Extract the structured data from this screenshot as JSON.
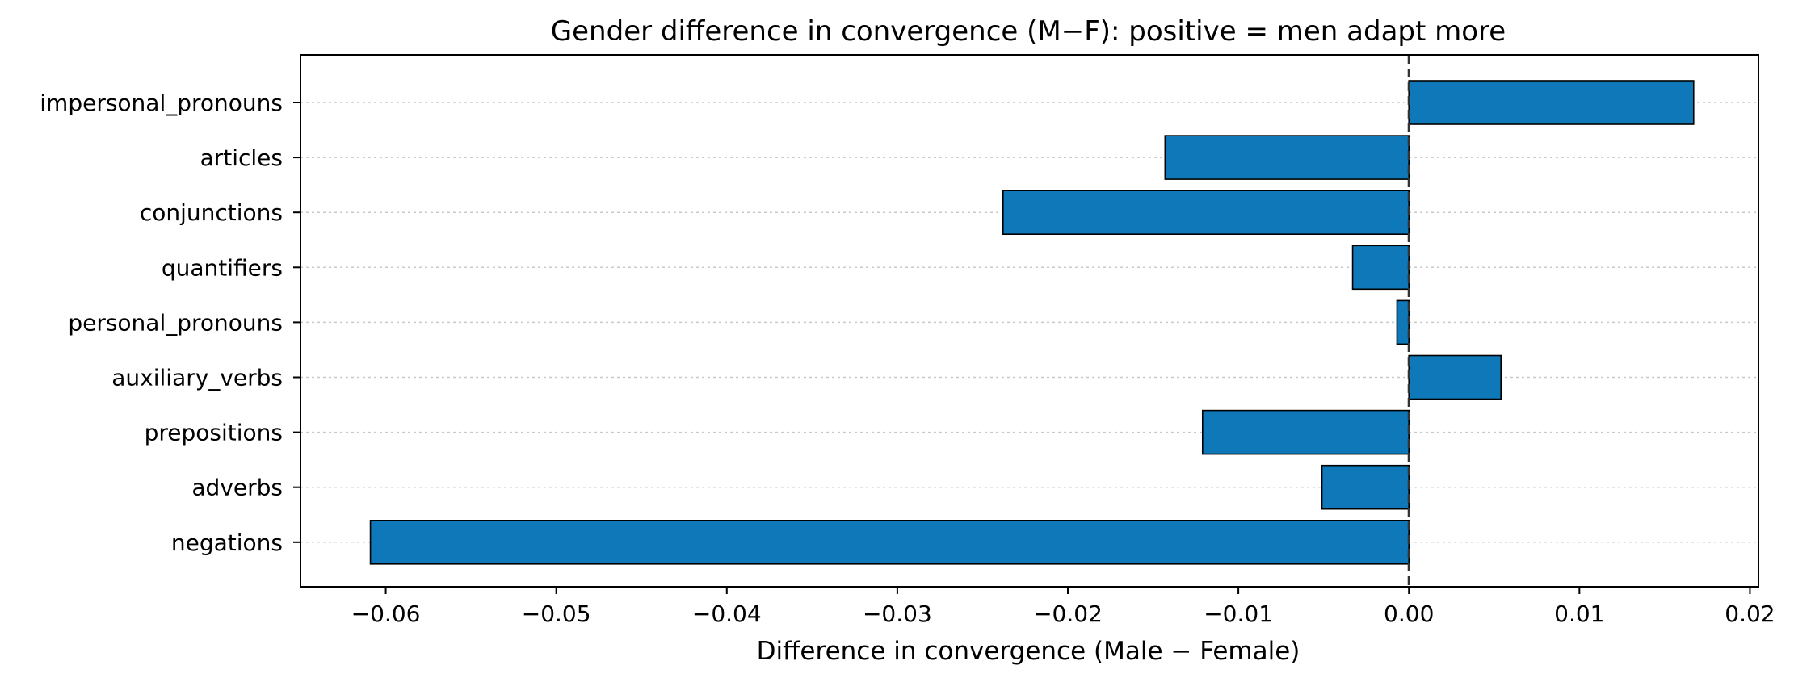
{
  "chart_data": {
    "type": "bar",
    "orientation": "horizontal",
    "title": "Gender difference in convergence (M−F): positive = men adapt more",
    "xlabel": "Difference in convergence (Male − Female)",
    "ylabel": "",
    "categories": [
      "impersonal_pronouns",
      "articles",
      "conjunctions",
      "quantifiers",
      "personal_pronouns",
      "auxiliary_verbs",
      "prepositions",
      "adverbs",
      "negations"
    ],
    "values": [
      0.0167,
      -0.0143,
      -0.0238,
      -0.0033,
      -0.0007,
      0.0054,
      -0.0121,
      -0.0051,
      -0.0609
    ],
    "xlim": [
      -0.065,
      0.0205
    ],
    "xticks": [
      -0.06,
      -0.05,
      -0.04,
      -0.03,
      -0.02,
      -0.01,
      0.0,
      0.01,
      0.02
    ],
    "xtick_labels": [
      "−0.06",
      "−0.05",
      "−0.04",
      "−0.03",
      "−0.02",
      "−0.01",
      "0.00",
      "0.01",
      "0.02"
    ],
    "bar_color": "#0e78b8",
    "reference_line": 0,
    "grid": "horizontal dotted",
    "legend": "none"
  }
}
